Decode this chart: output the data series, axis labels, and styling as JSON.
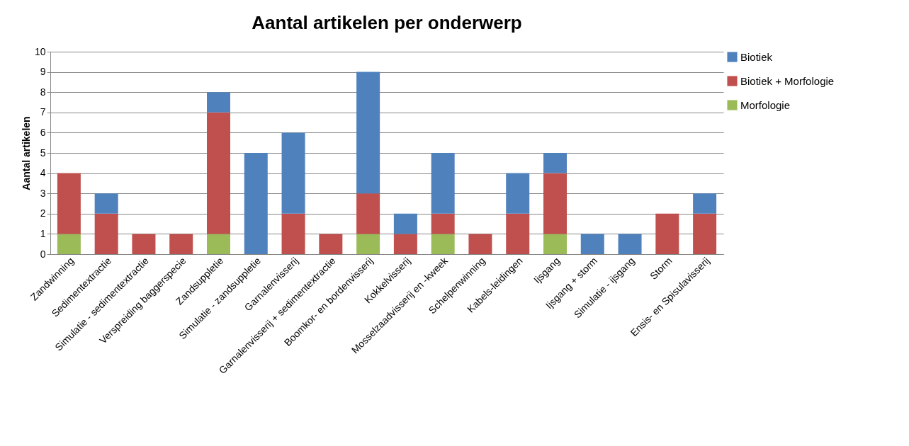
{
  "chart_data": {
    "type": "bar",
    "title": "Aantal artikelen per onderwerp",
    "ylabel": "Aantal artikelen",
    "stacked": true,
    "categories": [
      "Zandwinning",
      "Sedimentextractie",
      "Simulatie - sedimentextractie",
      "Verspreiding baggerspecie",
      "Zandsuppletie",
      "Simulatie - zandsuppletie",
      "Garnalenvisserij",
      "Garnalenvisserij + sedimentextractie",
      "Boomkor- en bordenvisserij",
      "Kokkelvisserij",
      "Mosselzaadvisserij en -kweek",
      "Schelpenwinning",
      "Kabels-leidingen",
      "Ijsgang",
      "Ijsgang + storm",
      "Simulatie - ijsgang",
      "Storm",
      "Ensis- en Spisulavisserij"
    ],
    "series": [
      {
        "name": "Morfologie",
        "color": "#9bbb59",
        "values": [
          1,
          0,
          0,
          0,
          1,
          0,
          0,
          0,
          1,
          0,
          1,
          0,
          0,
          1,
          0,
          0,
          0,
          0
        ]
      },
      {
        "name": "Biotiek + Morfologie",
        "color": "#c0504d",
        "values": [
          3,
          2,
          1,
          1,
          6,
          0,
          2,
          1,
          2,
          1,
          1,
          1,
          2,
          3,
          0,
          0,
          2,
          2
        ]
      },
      {
        "name": "Biotiek",
        "color": "#4f81bd",
        "values": [
          0,
          1,
          0,
          0,
          1,
          5,
          4,
          0,
          6,
          1,
          3,
          0,
          2,
          1,
          1,
          1,
          0,
          1
        ]
      }
    ],
    "ylim": [
      0,
      10
    ],
    "yticks": [
      0,
      1,
      2,
      3,
      4,
      5,
      6,
      7,
      8,
      9,
      10
    ],
    "grid": "y",
    "legend": "right"
  }
}
